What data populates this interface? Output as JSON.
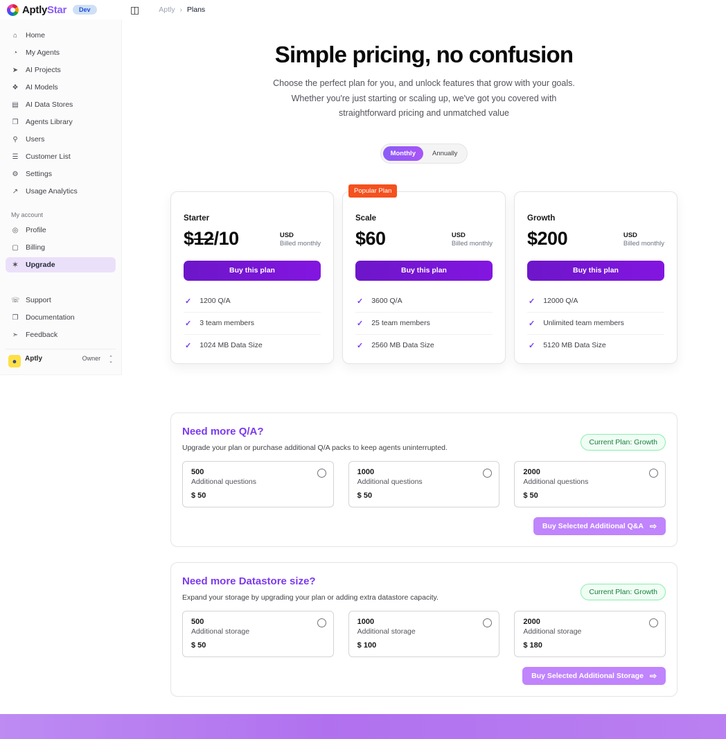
{
  "brand": {
    "name_primary": "Aptly",
    "name_secondary": "Star",
    "env_badge": "Dev"
  },
  "breadcrumb": {
    "root": "Aptly",
    "separator": "›",
    "current": "Plans"
  },
  "sidebar": {
    "main_items": [
      {
        "icon": "⌂",
        "label": "Home"
      },
      {
        "icon": "◔",
        "label": "My Agents"
      },
      {
        "icon": "➤",
        "label": "AI Projects"
      },
      {
        "icon": "❖",
        "label": "AI Models"
      },
      {
        "icon": "▤",
        "label": "AI Data Stores"
      },
      {
        "icon": "❐",
        "label": "Agents Library"
      },
      {
        "icon": "⚲",
        "label": "Users"
      },
      {
        "icon": "☰",
        "label": "Customer List"
      },
      {
        "icon": "⚙",
        "label": "Settings"
      },
      {
        "icon": "↗",
        "label": "Usage Analytics"
      }
    ],
    "account_label": "My account",
    "account_items": [
      {
        "icon": "◎",
        "label": "Profile"
      },
      {
        "icon": "▢",
        "label": "Billing"
      },
      {
        "icon": "✶",
        "label": "Upgrade"
      }
    ],
    "footer_items": [
      {
        "icon": "☏",
        "label": "Support"
      },
      {
        "icon": "❐",
        "label": "Documentation"
      },
      {
        "icon": "➣",
        "label": "Feedback"
      }
    ],
    "user": {
      "name": "Aptly",
      "role": "Owner"
    }
  },
  "hero": {
    "title": "Simple pricing, no confusion",
    "subtitle": "Choose the perfect plan for you, and unlock features that grow with your goals. Whether you're just starting or scaling up, we've got you covered with straightforward pricing and unmatched value"
  },
  "billing_toggle": {
    "monthly": "Monthly",
    "annually": "Annually",
    "active": "Monthly"
  },
  "plans": [
    {
      "name": "Starter",
      "price_symbol": "$",
      "price_old": "12",
      "price_main": "/10",
      "currency": "USD",
      "billing_cycle": "Billed monthly",
      "button": "Buy this plan",
      "features": [
        "1200 Q/A",
        "3 team members",
        "1024 MB Data Size"
      ]
    },
    {
      "name": "Scale",
      "badge": "Popular Plan",
      "price_symbol": "$",
      "price_main": "60",
      "currency": "USD",
      "billing_cycle": "Billed monthly",
      "button": "Buy this plan",
      "features": [
        "3600 Q/A",
        "25 team members",
        "2560 MB Data Size"
      ]
    },
    {
      "name": "Growth",
      "price_symbol": "$",
      "price_main": "200",
      "currency": "USD",
      "billing_cycle": "Billed monthly",
      "button": "Buy this plan",
      "features": [
        "12000 Q/A",
        "Unlimited team members",
        "5120 MB Data Size"
      ]
    }
  ],
  "addons": [
    {
      "title": "Need more Q/A?",
      "description": "Upgrade your plan or purchase additional Q/A packs to keep agents uninterrupted.",
      "current_plan_badge": "Current Plan: Growth",
      "options": [
        {
          "qty": "500",
          "label": "Additional questions",
          "price": "$ 50"
        },
        {
          "qty": "1000",
          "label": "Additional questions",
          "price": "$ 50"
        },
        {
          "qty": "2000",
          "label": "Additional questions",
          "price": "$ 50"
        }
      ],
      "buy_button": "Buy Selected Additional Q&A",
      "buy_arrow": "⇨"
    },
    {
      "title": "Need more Datastore size?",
      "description": "Expand your storage by upgrading your plan or adding extra datastore capacity.",
      "current_plan_badge": "Current Plan: Growth",
      "options": [
        {
          "qty": "500",
          "label": "Additional storage",
          "price": "$ 50"
        },
        {
          "qty": "1000",
          "label": "Additional storage",
          "price": "$ 100"
        },
        {
          "qty": "2000",
          "label": "Additional storage",
          "price": "$ 180"
        }
      ],
      "buy_button": "Buy Selected Additional Storage",
      "buy_arrow": "⇨"
    }
  ],
  "colors": {
    "accent_purple": "#7c3aed",
    "popular_badge_orange": "#f4511e",
    "current_plan_green": "#15803d",
    "addon_buy_purple": "#c084fc"
  }
}
